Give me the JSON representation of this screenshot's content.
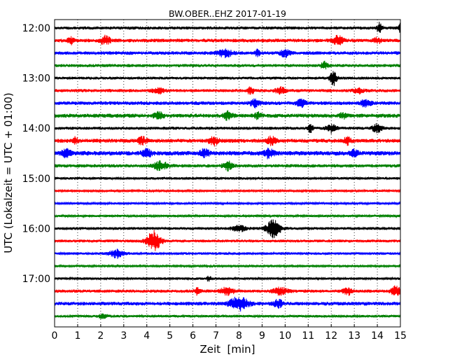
{
  "chart_data": {
    "type": "line",
    "title": "BW.OBER..EHZ 2017-01-19",
    "xlabel": "Zeit  [min]",
    "ylabel": "UTC (Lokalzeit = UTC + 01:00)",
    "xlim": [
      0,
      15
    ],
    "x_ticks": [
      "0",
      "1",
      "2",
      "3",
      "4",
      "5",
      "6",
      "7",
      "8",
      "9",
      "10",
      "11",
      "12",
      "13",
      "14",
      "15"
    ],
    "y_ticks": [
      "12:00",
      "13:00",
      "14:00",
      "15:00",
      "16:00",
      "17:00"
    ],
    "grid": "vertical dotted",
    "colors": [
      "#000000",
      "#ff0000",
      "#0000ff",
      "#008000"
    ],
    "traces": [
      {
        "start": "12:00",
        "color": "#000000",
        "noise": 2.2,
        "events": [
          [
            14.1,
            7,
            0.12
          ],
          [
            15.0,
            7,
            0.1
          ]
        ]
      },
      {
        "start": "12:15",
        "color": "#ff0000",
        "noise": 2.6,
        "events": [
          [
            0.7,
            5,
            0.15
          ],
          [
            2.2,
            6,
            0.2
          ],
          [
            12.3,
            6,
            0.25
          ],
          [
            14.0,
            4,
            0.15
          ]
        ]
      },
      {
        "start": "12:30",
        "color": "#0000ff",
        "noise": 2.5,
        "events": [
          [
            7.4,
            5,
            0.3
          ],
          [
            8.8,
            5,
            0.1
          ],
          [
            10.0,
            5,
            0.2
          ]
        ]
      },
      {
        "start": "12:45",
        "color": "#008000",
        "noise": 2.2,
        "events": [
          [
            11.7,
            5,
            0.15
          ]
        ]
      },
      {
        "start": "13:00",
        "color": "#000000",
        "noise": 2.0,
        "events": [
          [
            12.1,
            10,
            0.15
          ]
        ]
      },
      {
        "start": "13:15",
        "color": "#ff0000",
        "noise": 2.3,
        "events": [
          [
            4.5,
            4,
            0.25
          ],
          [
            8.5,
            6,
            0.12
          ],
          [
            9.8,
            5,
            0.2
          ],
          [
            13.2,
            4,
            0.2
          ]
        ]
      },
      {
        "start": "13:30",
        "color": "#0000ff",
        "noise": 2.6,
        "events": [
          [
            8.7,
            5,
            0.2
          ],
          [
            10.7,
            5,
            0.2
          ],
          [
            13.5,
            5,
            0.2
          ]
        ]
      },
      {
        "start": "13:45",
        "color": "#008000",
        "noise": 2.8,
        "events": [
          [
            4.5,
            5,
            0.2
          ],
          [
            7.5,
            5,
            0.2
          ],
          [
            8.8,
            4,
            0.15
          ],
          [
            12.5,
            4,
            0.15
          ]
        ]
      },
      {
        "start": "14:00",
        "color": "#000000",
        "noise": 2.2,
        "events": [
          [
            11.1,
            7,
            0.1
          ],
          [
            12.0,
            6,
            0.2
          ],
          [
            14.0,
            6,
            0.2
          ]
        ]
      },
      {
        "start": "14:15",
        "color": "#ff0000",
        "noise": 2.8,
        "events": [
          [
            0.9,
            5,
            0.1
          ],
          [
            3.8,
            5,
            0.2
          ],
          [
            6.9,
            6,
            0.2
          ],
          [
            9.4,
            5,
            0.2
          ],
          [
            12.7,
            5,
            0.15
          ]
        ]
      },
      {
        "start": "14:30",
        "color": "#0000ff",
        "noise": 3.2,
        "events": [
          [
            0.5,
            5,
            0.2
          ],
          [
            4.0,
            5,
            0.2
          ],
          [
            6.5,
            5,
            0.2
          ],
          [
            9.3,
            6,
            0.2
          ],
          [
            13.0,
            5,
            0.15
          ]
        ]
      },
      {
        "start": "14:45",
        "color": "#008000",
        "noise": 2.4,
        "events": [
          [
            4.6,
            6,
            0.3
          ],
          [
            7.5,
            6,
            0.2
          ]
        ]
      },
      {
        "start": "15:00",
        "color": "#000000",
        "noise": 1.8,
        "events": []
      },
      {
        "start": "15:15",
        "color": "#ff0000",
        "noise": 1.5,
        "events": []
      },
      {
        "start": "15:30",
        "color": "#0000ff",
        "noise": 1.5,
        "events": []
      },
      {
        "start": "15:45",
        "color": "#008000",
        "noise": 1.6,
        "events": []
      },
      {
        "start": "16:00",
        "color": "#000000",
        "noise": 2.0,
        "events": [
          [
            9.5,
            13,
            0.3
          ],
          [
            8.0,
            4,
            0.3
          ]
        ]
      },
      {
        "start": "16:15",
        "color": "#ff0000",
        "noise": 2.1,
        "events": [
          [
            4.3,
            14,
            0.3
          ]
        ]
      },
      {
        "start": "16:30",
        "color": "#0000ff",
        "noise": 1.8,
        "events": [
          [
            2.7,
            6,
            0.3
          ]
        ]
      },
      {
        "start": "16:45",
        "color": "#008000",
        "noise": 1.6,
        "events": []
      },
      {
        "start": "17:00",
        "color": "#000000",
        "noise": 1.7,
        "events": [
          [
            6.7,
            4,
            0.1
          ]
        ]
      },
      {
        "start": "17:15",
        "color": "#ff0000",
        "noise": 2.3,
        "events": [
          [
            6.2,
            5,
            0.1
          ],
          [
            7.5,
            5,
            0.3
          ],
          [
            9.8,
            5,
            0.3
          ],
          [
            12.7,
            5,
            0.2
          ],
          [
            14.8,
            7,
            0.2
          ]
        ]
      },
      {
        "start": "17:30",
        "color": "#0000ff",
        "noise": 2.6,
        "events": [
          [
            8.0,
            9,
            0.4
          ],
          [
            9.7,
            5,
            0.2
          ]
        ]
      },
      {
        "start": "17:45",
        "color": "#008000",
        "noise": 1.8,
        "events": [
          [
            2.1,
            3,
            0.2
          ]
        ]
      }
    ]
  }
}
